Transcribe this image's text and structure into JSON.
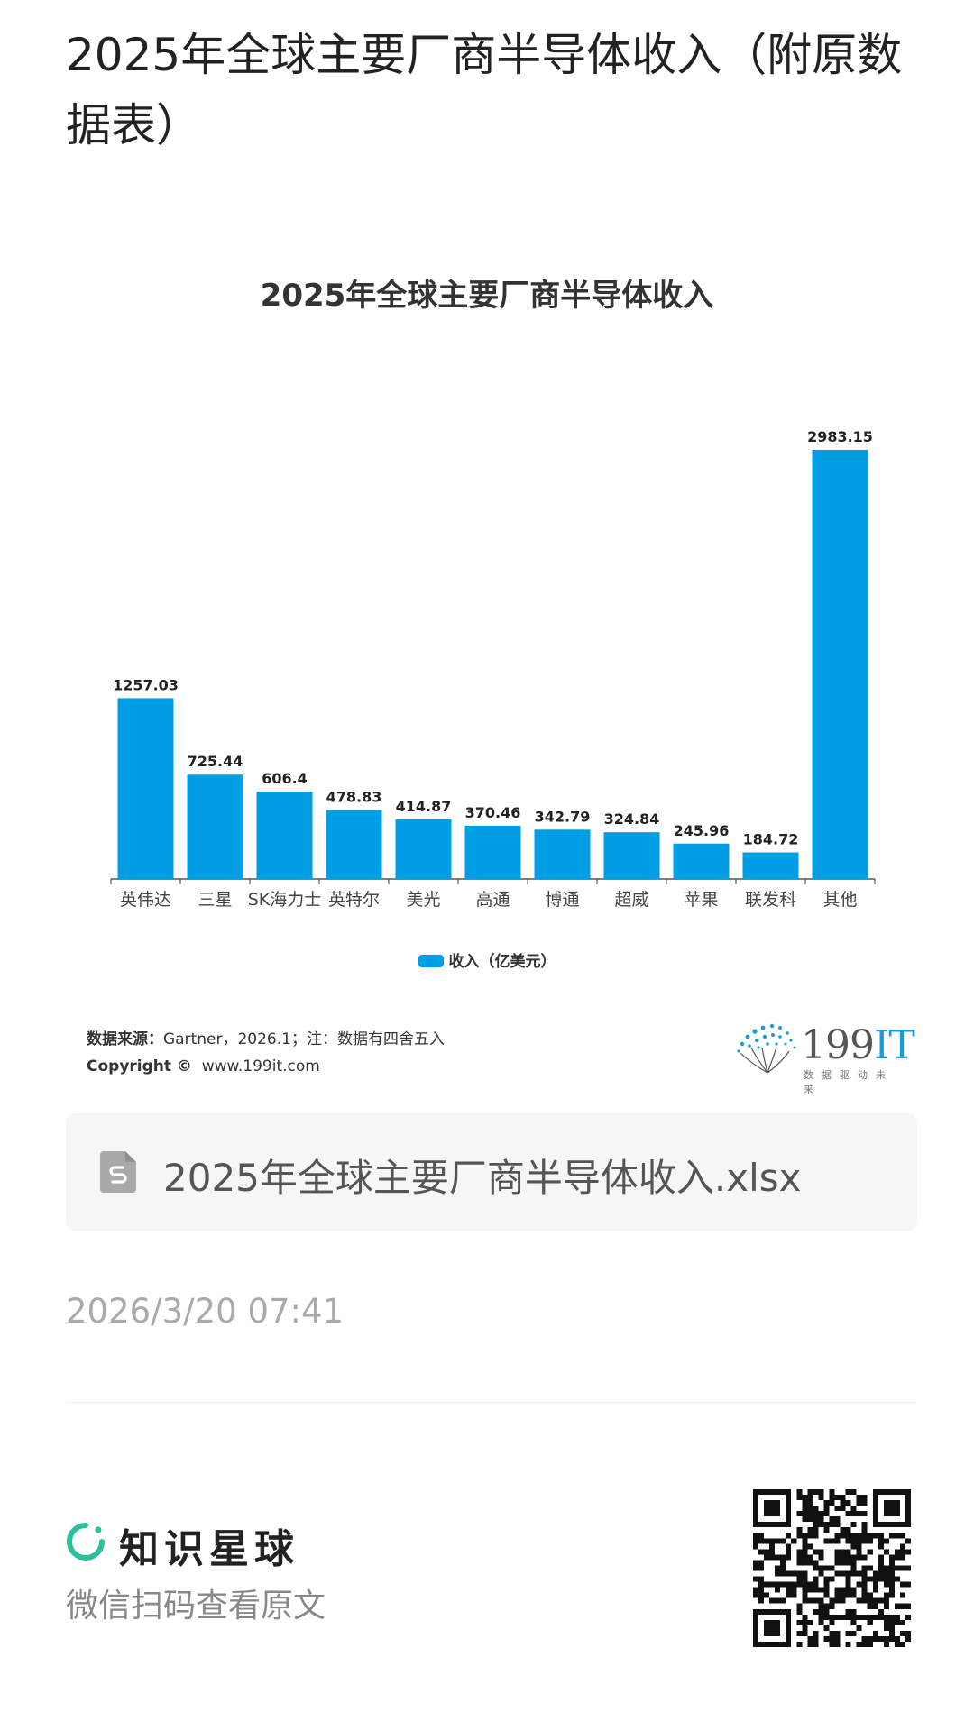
{
  "page": {
    "title": "2025年全球主要厂商半导体收入（附原数据表）"
  },
  "chart_data": {
    "type": "bar",
    "title": "2025年全球主要厂商半导体收入",
    "categories": [
      "英伟达",
      "三星",
      "SK海力士",
      "英特尔",
      "美光",
      "高通",
      "博通",
      "超威",
      "苹果",
      "联发科",
      "其他"
    ],
    "series": [
      {
        "name": "收入（亿美元）",
        "values": [
          1257.03,
          725.44,
          606.4,
          478.83,
          414.87,
          370.46,
          342.79,
          324.84,
          245.96,
          184.72,
          2983.15
        ],
        "color": "#009FE5"
      }
    ],
    "value_labels": [
      "1257.03",
      "725.44",
      "606.4",
      "478.83",
      "414.87",
      "370.46",
      "342.79",
      "324.84",
      "245.96",
      "184.72",
      "2983.15"
    ],
    "xlabel": "",
    "ylabel": "",
    "ylim": [
      0,
      2983.15
    ],
    "grid": false,
    "legend_position": "bottom-center"
  },
  "source": {
    "label": "数据来源：",
    "text": "Gartner，2026.1；注：数据有四舍五入",
    "copyright_label": "Copyright ©",
    "copyright_site": "www.199it.com"
  },
  "brand": {
    "name_digits": "199",
    "name_letters": "IT",
    "slogan": "数据驱动未来",
    "icon": "dandelion-logo-icon"
  },
  "attachment": {
    "icon": "spreadsheet-file-icon",
    "filename": "2025年全球主要厂商半导体收入.xlsx"
  },
  "timestamp": "2026/3/20 07:41",
  "footer": {
    "planet_icon": "planet-ring-icon",
    "planet_name": "知识星球",
    "scan_hint": "微信扫码查看原文",
    "qr_icon": "qr-code-icon"
  }
}
